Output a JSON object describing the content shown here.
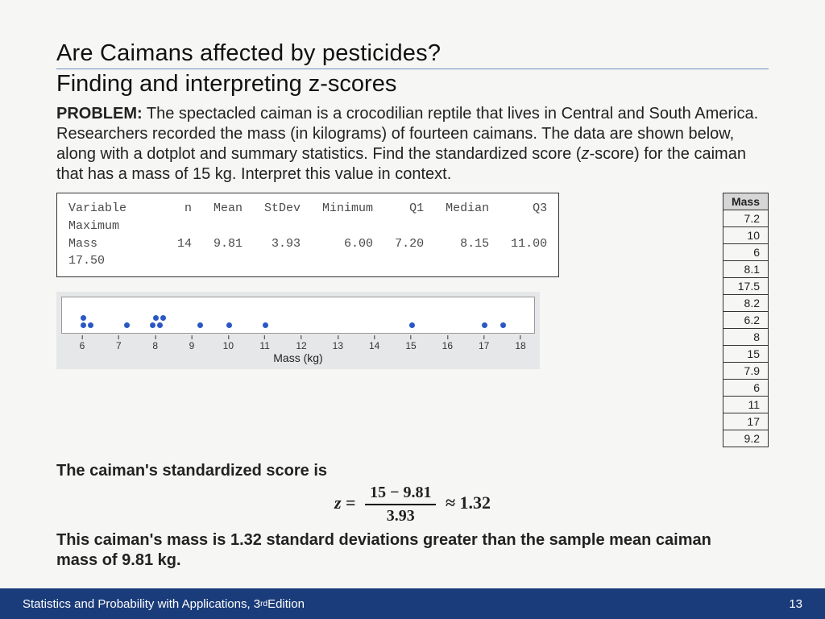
{
  "title": {
    "line1": "Are Caimans affected by pesticides?",
    "line2": "Finding and interpreting z-scores"
  },
  "problem": {
    "label": "PROBLEM:",
    "text_a": "  The spectacled caiman is a crocodilian reptile that lives in Central and South America. Researchers recorded the mass (in kilograms) of fourteen caimans. The data are shown below, along with a dotplot and summary statistics. Find the standardized score (",
    "ital": "z",
    "text_b": "-score) for the caiman that has a mass of 15 kg. Interpret this value in context."
  },
  "stats_text": "Variable        n   Mean   StDev   Minimum     Q1   Median      Q3\nMaximum\nMass           14   9.81    3.93      6.00   7.20     8.15   11.00\n17.50",
  "dotplot": {
    "axis_min": 6,
    "axis_max": 18,
    "ticks": [
      6,
      7,
      8,
      9,
      10,
      11,
      12,
      13,
      14,
      15,
      16,
      17,
      18
    ],
    "axis_label": "Mass (kg)",
    "dot_color": "#2a57c4",
    "inner_left_pad": 26,
    "inner_right_pad": 18,
    "inner_width": 588,
    "points": [
      {
        "x": 6,
        "stack": 0
      },
      {
        "x": 6,
        "stack": 1
      },
      {
        "x": 6.2,
        "stack": 0
      },
      {
        "x": 7.2,
        "stack": 0
      },
      {
        "x": 7.9,
        "stack": 0
      },
      {
        "x": 8,
        "stack": 1
      },
      {
        "x": 8.1,
        "stack": 0
      },
      {
        "x": 8.2,
        "stack": 1
      },
      {
        "x": 9.2,
        "stack": 0
      },
      {
        "x": 10,
        "stack": 0
      },
      {
        "x": 11,
        "stack": 0
      },
      {
        "x": 15,
        "stack": 0
      },
      {
        "x": 17,
        "stack": 0
      },
      {
        "x": 17.5,
        "stack": 0
      }
    ]
  },
  "mass_table": {
    "header": "Mass",
    "rows": [
      "7.2",
      "10",
      "6",
      "8.1",
      "17.5",
      "8.2",
      "6.2",
      "8",
      "15",
      "7.9",
      "6",
      "11",
      "17",
      "9.2"
    ]
  },
  "answer": {
    "line1": "The caiman's standardized score is",
    "formula": {
      "z": "z",
      "eq": "=",
      "num": "15 − 9.81",
      "den": "3.93",
      "approx": "≈ 1.32"
    },
    "line2": "This caiman's mass is 1.32 standard deviations greater than the sample mean caiman mass of 9.81 kg."
  },
  "footer": {
    "book_a": "Statistics and Probability with Applications, 3",
    "book_sup": "rd",
    "book_b": " Edition",
    "page": "13"
  },
  "colors": {
    "footer_bg": "#1b3c7a",
    "rule": "#6a8fbf"
  }
}
